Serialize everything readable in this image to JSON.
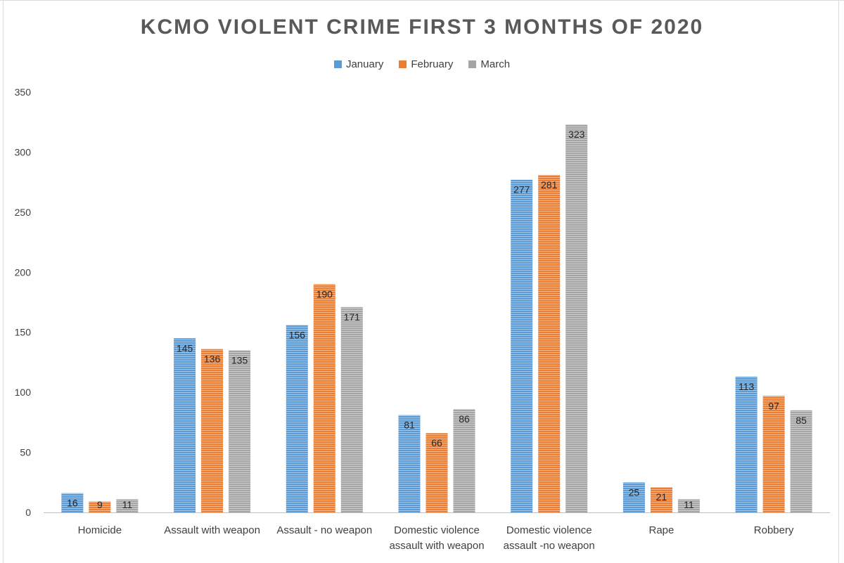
{
  "chart_data": {
    "type": "bar",
    "title": "KCMO VIOLENT CRIME FIRST 3 MONTHS OF 2020",
    "categories": [
      [
        "Homicide"
      ],
      [
        "Assault with weapon"
      ],
      [
        "Assault - no weapon"
      ],
      [
        "Domestic violence",
        "assault with weapon"
      ],
      [
        "Domestic violence",
        "assault -no weapon"
      ],
      [
        "Rape"
      ],
      [
        "Robbery"
      ]
    ],
    "series": [
      {
        "name": "January",
        "color": "#5b9bd5",
        "values": [
          16,
          145,
          156,
          81,
          277,
          25,
          113
        ]
      },
      {
        "name": "February",
        "color": "#ed7d31",
        "values": [
          9,
          136,
          190,
          66,
          281,
          21,
          97
        ]
      },
      {
        "name": "March",
        "color": "#a5a5a5",
        "values": [
          11,
          135,
          171,
          86,
          323,
          11,
          85
        ]
      }
    ],
    "ylim": [
      0,
      350
    ],
    "yticks": [
      0,
      50,
      100,
      150,
      200,
      250,
      300,
      350
    ],
    "grid": false,
    "legend_position": "top",
    "data_labels": true
  }
}
